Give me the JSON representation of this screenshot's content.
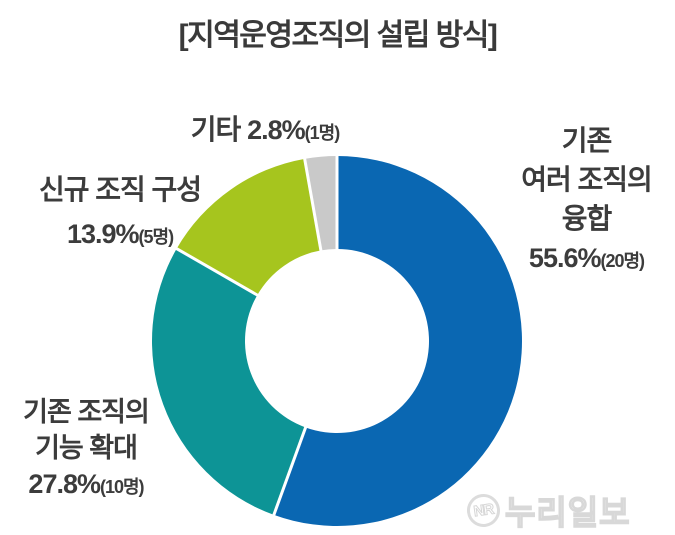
{
  "title": "[지역운영조직의 설립 방식]",
  "chart_data": {
    "type": "pie",
    "variant": "donut",
    "title": "지역운영조직의 설립 방식",
    "start_angle_deg": 0,
    "direction": "clockwise",
    "unit": "명",
    "legend_position": "outside-labels",
    "segments": [
      {
        "name": "기존 여러 조직의 융합",
        "lines": [
          "기존",
          "여러 조직의",
          "융합"
        ],
        "value": 55.6,
        "pct_text": "55.6%",
        "count": 20,
        "cnt_text": "(20명)",
        "color": "#0a67b2"
      },
      {
        "name": "기존 조직의 기능 확대",
        "lines": [
          "기존 조직의",
          "기능 확대"
        ],
        "value": 27.8,
        "pct_text": "27.8%",
        "count": 10,
        "cnt_text": "(10명)",
        "color": "#0d9496"
      },
      {
        "name": "신규 조직 구성",
        "lines": [
          "신규 조직 구성"
        ],
        "value": 13.9,
        "pct_text": "13.9%",
        "count": 5,
        "cnt_text": "(5명)",
        "color": "#a6c51e"
      },
      {
        "name": "기타",
        "lines": [
          "기타"
        ],
        "value": 2.8,
        "pct_text": "2.8%",
        "count": 1,
        "cnt_text": "(1명)",
        "color": "#c9c9c9"
      }
    ],
    "colors": {
      "separator": "#ffffff",
      "label_text": "#3c3c3c"
    }
  },
  "watermark": {
    "logo_text": "NR",
    "text": "누리일보"
  }
}
